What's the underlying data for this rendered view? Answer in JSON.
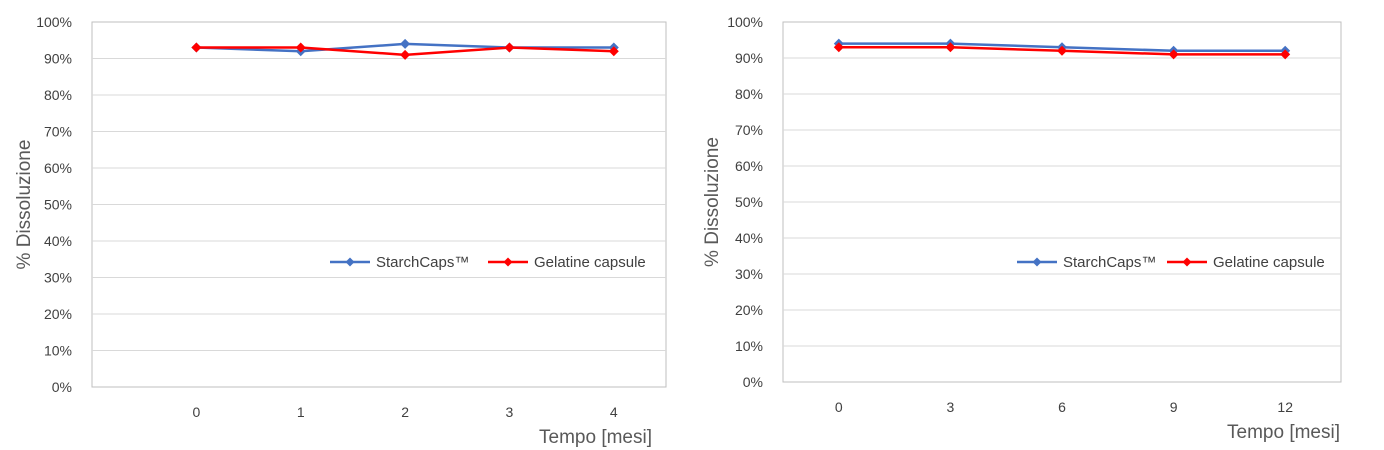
{
  "colors": {
    "starchcaps": "#4472C4",
    "gelatine": "#FF0000",
    "grid": "#D9D9D9",
    "axis": "#BFBFBF"
  },
  "chart_data": [
    {
      "type": "line",
      "categories": [
        "0",
        "1",
        "2",
        "3",
        "4"
      ],
      "series": [
        {
          "name": "StarchCaps™",
          "values": [
            93,
            92,
            94,
            93,
            93
          ]
        },
        {
          "name": "Gelatine capsule",
          "values": [
            93,
            93,
            91,
            93,
            92
          ]
        }
      ],
      "xlabel": "Tempo [mesi]",
      "ylabel": "% Dissoluzione",
      "ylim": [
        0,
        100
      ],
      "yticks": [
        "0%",
        "10%",
        "20%",
        "30%",
        "40%",
        "50%",
        "60%",
        "70%",
        "80%",
        "90%",
        "100%"
      ],
      "grid": true,
      "legend": "right-middle"
    },
    {
      "type": "line",
      "categories": [
        "0",
        "3",
        "6",
        "9",
        "12"
      ],
      "series": [
        {
          "name": "StarchCaps™",
          "values": [
            94,
            94,
            93,
            92,
            92
          ]
        },
        {
          "name": "Gelatine capsule",
          "values": [
            93,
            93,
            92,
            91,
            91
          ]
        }
      ],
      "xlabel": "Tempo [mesi]",
      "ylabel": "% Dissoluzione",
      "ylim": [
        0,
        100
      ],
      "yticks": [
        "0%",
        "10%",
        "20%",
        "30%",
        "40%",
        "50%",
        "60%",
        "70%",
        "80%",
        "90%",
        "100%"
      ],
      "grid": true,
      "legend": "right-middle"
    }
  ]
}
